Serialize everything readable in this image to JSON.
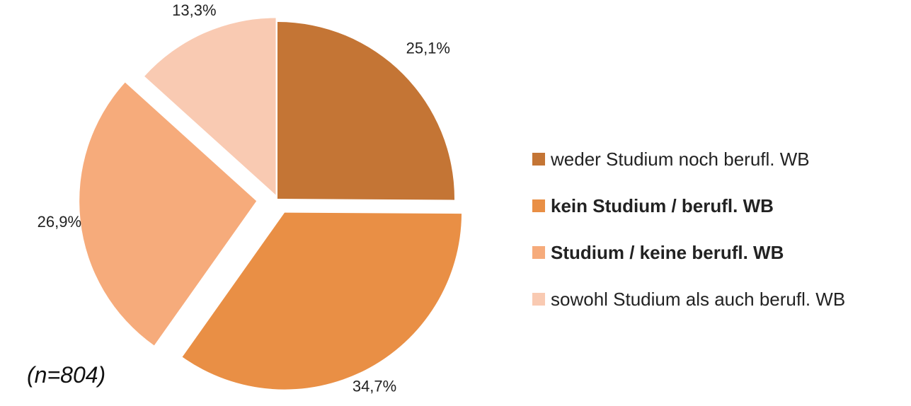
{
  "chart_data": {
    "type": "pie",
    "categories": [
      "weder Studium noch berufl. WB",
      "kein Studium / berufl. WB",
      "Studium / keine berufl. WB",
      "sowohl Studium als auch berufl. WB"
    ],
    "values": [
      25.1,
      34.7,
      26.9,
      13.3
    ],
    "value_labels": [
      "25,1%",
      "34,7%",
      "26,9%",
      "13,3%"
    ],
    "colors": [
      "#c47535",
      "#e98f45",
      "#f6ab7b",
      "#f9cab2"
    ],
    "annotation": "(n=804)",
    "legend": "right"
  }
}
